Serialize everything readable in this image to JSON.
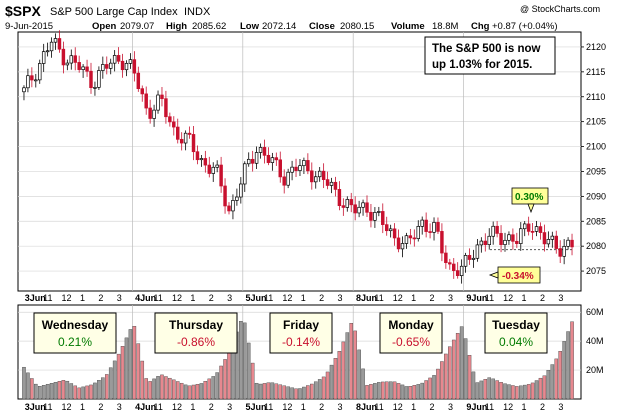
{
  "header": {
    "symbol": "$SPX",
    "name": "S&P 500 Large Cap Index",
    "exchange": "INDX",
    "date": "9-Jun-2015",
    "open_label": "Open",
    "open": "2079.07",
    "high_label": "High",
    "high": "2085.62",
    "low_label": "Low",
    "low": "2072.14",
    "close_label": "Close",
    "close": "2080.15",
    "volume_label": "Volume",
    "volume": "18.8M",
    "chg_label": "Chg",
    "chg": "+0.87 (+0.04%)",
    "watermark": "@ StockCharts.com"
  },
  "note": {
    "line1": "The S&P 500  is now",
    "line2": "up 1.03% for 2015."
  },
  "callouts": {
    "high_pct": "0.30%",
    "low_pct": "-0.34%"
  },
  "colors": {
    "up": "#000000",
    "down": "#c8102e",
    "gain": "#007a00",
    "loss": "#c8102e",
    "volume_up_fill": "#e7888f",
    "volume_down_fill": "#9a9a9a",
    "callout_fill": "#ffff99",
    "box_fill": "#ffffe6"
  },
  "day_boxes": [
    {
      "day": "Wednesday",
      "change": "0.21%",
      "dir": "up"
    },
    {
      "day": "Thursday",
      "change": "-0.86%",
      "dir": "down"
    },
    {
      "day": "Friday",
      "change": "-0.14%",
      "dir": "down"
    },
    {
      "day": "Monday",
      "change": "-0.65%",
      "dir": "down"
    },
    {
      "day": "Tuesday",
      "change": "0.04%",
      "dir": "up"
    }
  ],
  "chart_data": {
    "type": "candlestick",
    "title": "$SPX S&P 500 Large Cap Index INDX",
    "y_ticks": [
      2075,
      2080,
      2085,
      2090,
      2095,
      2100,
      2105,
      2110,
      2115,
      2120
    ],
    "ylim": [
      2071,
      2123
    ],
    "volume_ticks": [
      "20M",
      "40M",
      "60M"
    ],
    "volume_lim": [
      0,
      65
    ],
    "x_tick_labels": [
      "3Jun",
      "11",
      "12",
      "1",
      "2",
      "3",
      "4Jun",
      "11",
      "12",
      "1",
      "2",
      "3",
      "5Jun",
      "11",
      "12",
      "1",
      "2",
      "3",
      "8Jun",
      "11",
      "12",
      "1",
      "2",
      "3",
      "9Jun",
      "11",
      "12",
      "1",
      "2",
      "3"
    ],
    "reference_close": 2079.3,
    "price_path": [
      2111,
      2116,
      2121,
      2118,
      2116,
      2113,
      2116,
      2118,
      2115,
      2107,
      2109,
      2103,
      2101,
      2097,
      2095,
      2087,
      2094,
      2100,
      2097,
      2094,
      2096,
      2095,
      2093,
      2090,
      2087,
      2088,
      2085,
      2082,
      2080,
      2085,
      2083,
      2076,
      2075,
      2080,
      2082,
      2082,
      2081,
      2085,
      2081,
      2080,
      2080
    ],
    "volume_path": [
      22,
      8,
      10,
      12,
      6,
      8,
      14,
      30,
      50,
      8,
      14,
      10,
      6,
      8,
      14,
      30,
      56,
      8,
      10,
      8,
      6,
      10,
      16,
      32,
      54,
      8,
      10,
      10,
      6,
      8,
      14,
      32,
      48,
      8,
      12,
      8,
      6,
      8,
      14,
      28,
      52
    ]
  }
}
